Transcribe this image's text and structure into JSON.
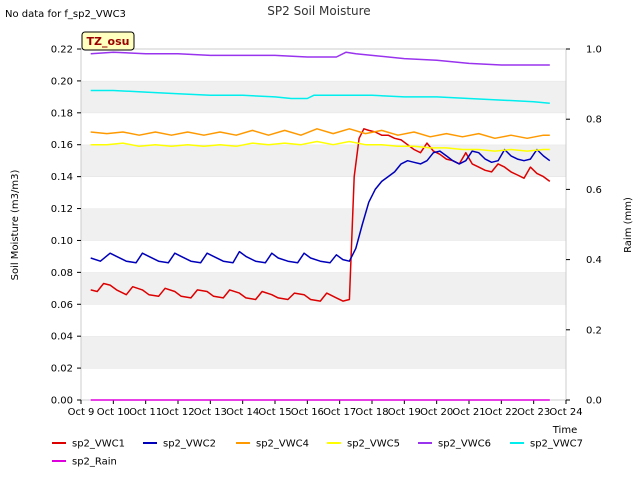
{
  "chart_data": {
    "type": "line",
    "title": "SP2 Soil Moisture",
    "no_data_message": "No data for f_sp2_VWC3",
    "badge": "TZ_osu",
    "xlabel": "Time",
    "ylabel": "Soil Moisture (m3/m3)",
    "y2label": "Raim (mm)",
    "ylim": [
      0.0,
      0.22
    ],
    "y2lim": [
      0.0,
      1.0
    ],
    "xlim": [
      9,
      24
    ],
    "yticks": [
      "0.00",
      "0.02",
      "0.04",
      "0.06",
      "0.08",
      "0.10",
      "0.12",
      "0.14",
      "0.16",
      "0.18",
      "0.20",
      "0.22"
    ],
    "y2ticks": [
      "0.0",
      "0.2",
      "0.4",
      "0.6",
      "0.8",
      "1.0"
    ],
    "xticks": [
      "Oct 9",
      "Oct 10",
      "Oct 11",
      "Oct 12",
      "Oct 13",
      "Oct 14",
      "Oct 15",
      "Oct 16",
      "Oct 17",
      "Oct 18",
      "Oct 19",
      "Oct 20",
      "Oct 21",
      "Oct 22",
      "Oct 23",
      "Oct 24"
    ],
    "grid": "horizontal bands",
    "legend_position": "bottom",
    "colors": {
      "sp2_VWC1": "#dd0000",
      "sp2_VWC2": "#0000bb",
      "sp2_VWC4": "#ff9900",
      "sp2_VWC5": "#ffff00",
      "sp2_VWC6": "#9933ee",
      "sp2_VWC7": "#00eeee",
      "sp2_Rain": "#dd00dd"
    },
    "series": [
      {
        "name": "sp2_VWC1",
        "axis": "left",
        "x": [
          9.3,
          9.5,
          9.7,
          9.9,
          10.1,
          10.4,
          10.6,
          10.9,
          11.1,
          11.4,
          11.6,
          11.9,
          12.1,
          12.4,
          12.6,
          12.9,
          13.1,
          13.4,
          13.6,
          13.9,
          14.1,
          14.4,
          14.6,
          14.9,
          15.1,
          15.4,
          15.6,
          15.9,
          16.1,
          16.4,
          16.6,
          16.9,
          17.1,
          17.3,
          17.45,
          17.6,
          17.75,
          17.9,
          18.1,
          18.3,
          18.5,
          18.7,
          18.9,
          19.1,
          19.3,
          19.5,
          19.7,
          19.9,
          20.1,
          20.3,
          20.5,
          20.7,
          20.9,
          21.1,
          21.3,
          21.5,
          21.7,
          21.9,
          22.1,
          22.3,
          22.5,
          22.7,
          22.9,
          23.1,
          23.3,
          23.5
        ],
        "y": [
          0.069,
          0.068,
          0.073,
          0.072,
          0.069,
          0.066,
          0.071,
          0.069,
          0.066,
          0.065,
          0.07,
          0.068,
          0.065,
          0.064,
          0.069,
          0.068,
          0.065,
          0.064,
          0.069,
          0.067,
          0.064,
          0.063,
          0.068,
          0.066,
          0.064,
          0.063,
          0.067,
          0.066,
          0.063,
          0.062,
          0.067,
          0.064,
          0.062,
          0.063,
          0.14,
          0.164,
          0.17,
          0.169,
          0.168,
          0.166,
          0.166,
          0.164,
          0.163,
          0.16,
          0.157,
          0.155,
          0.161,
          0.156,
          0.154,
          0.151,
          0.15,
          0.148,
          0.155,
          0.148,
          0.146,
          0.144,
          0.143,
          0.148,
          0.146,
          0.143,
          0.141,
          0.139,
          0.146,
          0.142,
          0.14,
          0.137
        ]
      },
      {
        "name": "sp2_VWC2",
        "axis": "left",
        "x": [
          9.3,
          9.6,
          9.9,
          10.1,
          10.4,
          10.7,
          10.9,
          11.1,
          11.4,
          11.7,
          11.9,
          12.1,
          12.4,
          12.7,
          12.9,
          13.1,
          13.4,
          13.7,
          13.9,
          14.1,
          14.4,
          14.7,
          14.9,
          15.1,
          15.4,
          15.7,
          15.9,
          16.1,
          16.4,
          16.7,
          16.9,
          17.1,
          17.3,
          17.5,
          17.7,
          17.9,
          18.1,
          18.3,
          18.5,
          18.7,
          18.9,
          19.1,
          19.3,
          19.5,
          19.7,
          19.9,
          20.1,
          20.3,
          20.5,
          20.7,
          20.9,
          21.1,
          21.3,
          21.5,
          21.7,
          21.9,
          22.1,
          22.3,
          22.5,
          22.7,
          22.9,
          23.1,
          23.3,
          23.5
        ],
        "y": [
          0.089,
          0.087,
          0.092,
          0.09,
          0.087,
          0.086,
          0.092,
          0.09,
          0.087,
          0.086,
          0.092,
          0.09,
          0.087,
          0.086,
          0.092,
          0.09,
          0.087,
          0.086,
          0.093,
          0.09,
          0.087,
          0.086,
          0.092,
          0.089,
          0.087,
          0.086,
          0.092,
          0.089,
          0.087,
          0.086,
          0.091,
          0.088,
          0.087,
          0.095,
          0.11,
          0.124,
          0.132,
          0.137,
          0.14,
          0.143,
          0.148,
          0.15,
          0.149,
          0.148,
          0.15,
          0.155,
          0.156,
          0.153,
          0.15,
          0.148,
          0.15,
          0.156,
          0.155,
          0.151,
          0.149,
          0.15,
          0.157,
          0.153,
          0.151,
          0.15,
          0.151,
          0.157,
          0.153,
          0.15
        ]
      },
      {
        "name": "sp2_VWC4",
        "axis": "left",
        "x": [
          9.3,
          9.8,
          10.3,
          10.8,
          11.3,
          11.8,
          12.3,
          12.8,
          13.3,
          13.8,
          14.3,
          14.8,
          15.3,
          15.8,
          16.3,
          16.8,
          17.3,
          17.8,
          18.3,
          18.8,
          19.3,
          19.8,
          20.3,
          20.8,
          21.3,
          21.8,
          22.3,
          22.8,
          23.3,
          23.5
        ],
        "y": [
          0.168,
          0.167,
          0.168,
          0.166,
          0.168,
          0.166,
          0.168,
          0.166,
          0.168,
          0.166,
          0.169,
          0.166,
          0.169,
          0.166,
          0.17,
          0.167,
          0.17,
          0.167,
          0.169,
          0.166,
          0.168,
          0.165,
          0.167,
          0.165,
          0.167,
          0.164,
          0.166,
          0.164,
          0.166,
          0.166
        ]
      },
      {
        "name": "sp2_VWC5",
        "axis": "left",
        "x": [
          9.3,
          9.8,
          10.3,
          10.8,
          11.3,
          11.8,
          12.3,
          12.8,
          13.3,
          13.8,
          14.3,
          14.8,
          15.3,
          15.8,
          16.3,
          16.8,
          17.3,
          17.8,
          18.3,
          18.8,
          19.3,
          19.8,
          20.3,
          20.8,
          21.3,
          21.8,
          22.3,
          22.8,
          23.3,
          23.5
        ],
        "y": [
          0.16,
          0.16,
          0.161,
          0.159,
          0.16,
          0.159,
          0.16,
          0.159,
          0.16,
          0.159,
          0.161,
          0.16,
          0.161,
          0.16,
          0.162,
          0.16,
          0.162,
          0.16,
          0.16,
          0.159,
          0.159,
          0.158,
          0.158,
          0.157,
          0.157,
          0.156,
          0.157,
          0.156,
          0.157,
          0.157
        ]
      },
      {
        "name": "sp2_VWC6",
        "axis": "left",
        "x": [
          9.3,
          10.0,
          11.0,
          12.0,
          13.0,
          14.0,
          15.0,
          16.0,
          16.9,
          17.2,
          17.5,
          18.0,
          19.0,
          20.0,
          21.0,
          22.0,
          23.0,
          23.5
        ],
        "y": [
          0.217,
          0.218,
          0.217,
          0.217,
          0.216,
          0.216,
          0.216,
          0.215,
          0.215,
          0.218,
          0.217,
          0.216,
          0.214,
          0.213,
          0.211,
          0.21,
          0.21,
          0.21
        ]
      },
      {
        "name": "sp2_VWC7",
        "axis": "left",
        "x": [
          9.3,
          10.0,
          11.0,
          12.0,
          13.0,
          14.0,
          15.0,
          15.5,
          16.0,
          16.2,
          17.0,
          18.0,
          19.0,
          20.0,
          21.0,
          22.0,
          23.0,
          23.5
        ],
        "y": [
          0.194,
          0.194,
          0.193,
          0.192,
          0.191,
          0.191,
          0.19,
          0.189,
          0.189,
          0.191,
          0.191,
          0.191,
          0.19,
          0.19,
          0.189,
          0.188,
          0.187,
          0.186
        ]
      },
      {
        "name": "sp2_Rain",
        "axis": "right",
        "x": [
          9.3,
          23.5
        ],
        "y": [
          0.0,
          0.0
        ]
      }
    ]
  }
}
